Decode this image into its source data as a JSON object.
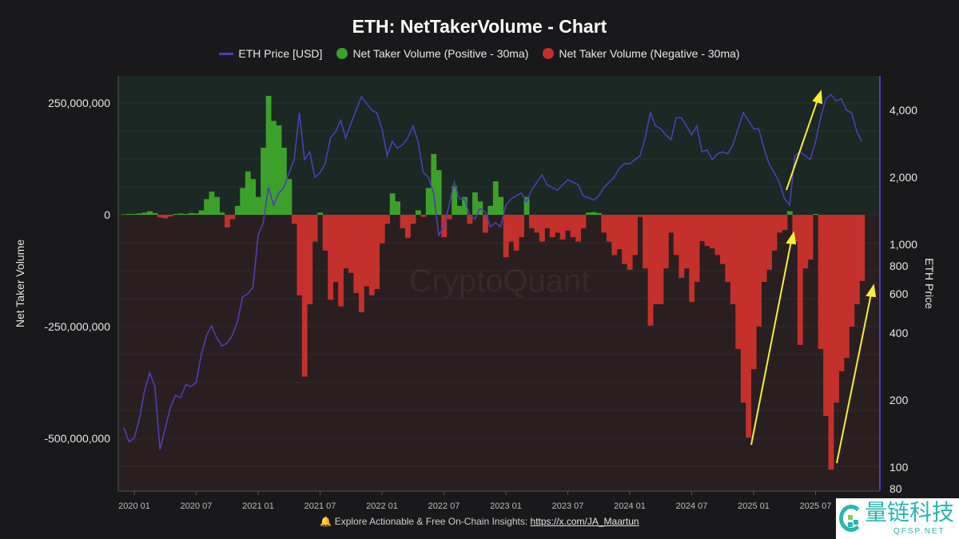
{
  "chart_data": {
    "type": "bar+line",
    "title": "ETH: NetTakerVolume - Chart",
    "legend": [
      {
        "label": "ETH Price [USD]",
        "color": "#4b3fb8",
        "marker": "line"
      },
      {
        "label": "Net Taker Volume (Positive - 30ma)",
        "color": "#3ca12a",
        "marker": "dot"
      },
      {
        "label": "Net Taker Volume (Negative - 30ma)",
        "color": "#c4302b",
        "marker": "dot"
      }
    ],
    "legend_position": "top-center",
    "ylabel_left": "Net Taker Volume",
    "ylabel_right": "ETH Price",
    "left_axis": {
      "min": -600000000,
      "max": 310000000,
      "ticks": [
        250000000,
        0,
        -250000000,
        -500000000
      ],
      "tick_labels": [
        "250,000,000",
        "0",
        "-250,000,000",
        "-500,000,000"
      ]
    },
    "right_axis": {
      "scale": "log",
      "min": 75,
      "max": 5900,
      "ticks": [
        4000,
        2000,
        1000,
        800,
        600,
        400,
        200,
        100,
        80
      ],
      "tick_labels": [
        "4,000",
        "2,000",
        "1,000",
        "800",
        "600",
        "400",
        "200",
        "100",
        "80"
      ]
    },
    "x_tick_labels": [
      "2020 01",
      "2020 07",
      "2021 01",
      "2021 07",
      "2022 01",
      "2022 07",
      "2023 01",
      "2023 07",
      "2024 01",
      "2024 07",
      "2025 01",
      "2025 07"
    ],
    "x_ticks": [
      "2020-01-01",
      "2020-07-01",
      "2021-01-01",
      "2021-07-01",
      "2022-01-01",
      "2022-07-01",
      "2023-01-01",
      "2023-07-01",
      "2024-01-01",
      "2024-07-01",
      "2025-01-01",
      "2025-07-01"
    ],
    "grid": true,
    "months": [
      "2019-12",
      "2020-01",
      "2020-02",
      "2020-03",
      "2020-04",
      "2020-05",
      "2020-06",
      "2020-07",
      "2020-08",
      "2020-09",
      "2020-10",
      "2020-11",
      "2020-12",
      "2021-01",
      "2021-02",
      "2021-03",
      "2021-04",
      "2021-05",
      "2021-06",
      "2021-07",
      "2021-08",
      "2021-09",
      "2021-10",
      "2021-11",
      "2021-12",
      "2022-01",
      "2022-02",
      "2022-03",
      "2022-04",
      "2022-05",
      "2022-06",
      "2022-07",
      "2022-08",
      "2022-09",
      "2022-10",
      "2022-11",
      "2022-12",
      "2023-01",
      "2023-02",
      "2023-03",
      "2023-04",
      "2023-05",
      "2023-06",
      "2023-07",
      "2023-08",
      "2023-09",
      "2023-10",
      "2023-11",
      "2023-12",
      "2024-01",
      "2024-02",
      "2024-03",
      "2024-04",
      "2024-05",
      "2024-06",
      "2024-07",
      "2024-08",
      "2024-09",
      "2024-10",
      "2024-11",
      "2024-12",
      "2025-01",
      "2025-02",
      "2025-03",
      "2025-04",
      "2025-05",
      "2025-06",
      "2025-07",
      "2025-08",
      "2025-09",
      "2025-10",
      "2025-11"
    ],
    "sampling": "two points per month (1st, 16th)",
    "net_taker_volume_millions": [
      1,
      2,
      2,
      3,
      5,
      8,
      4,
      -6,
      -8,
      -4,
      2,
      3,
      2,
      4,
      3,
      10,
      35,
      52,
      40,
      5,
      -28,
      -10,
      20,
      60,
      97,
      80,
      40,
      150,
      266,
      210,
      200,
      150,
      80,
      -20,
      -180,
      -362,
      -200,
      -60,
      5,
      -80,
      -190,
      -150,
      -205,
      -120,
      -130,
      -175,
      -218,
      -160,
      -180,
      -166,
      -64,
      -20,
      48,
      30,
      -30,
      -52,
      -20,
      10,
      -5,
      60,
      136,
      100,
      -50,
      -10,
      64,
      20,
      40,
      -20,
      50,
      30,
      -40,
      20,
      75,
      40,
      -95,
      -60,
      -80,
      -50,
      40,
      -30,
      -40,
      -60,
      -30,
      -50,
      -40,
      -55,
      -35,
      -50,
      -60,
      -30,
      5,
      6,
      4,
      -40,
      -60,
      -90,
      -77,
      -110,
      -123,
      -90,
      -5,
      -120,
      -248,
      -200,
      -200,
      -120,
      -40,
      -90,
      -141,
      -120,
      -195,
      -150,
      -59,
      -70,
      -75,
      -90,
      -110,
      -150,
      -200,
      -300,
      -420,
      -498,
      -345,
      -250,
      -150,
      -123,
      -80,
      -40,
      -34,
      8,
      -60,
      -291,
      -120,
      -100,
      2,
      -300,
      -450,
      -570,
      -420,
      -350,
      -320,
      -250,
      -200,
      -148
    ],
    "eth_price_usd": [
      150,
      130,
      135,
      165,
      220,
      265,
      230,
      120,
      150,
      185,
      210,
      205,
      235,
      230,
      240,
      320,
      390,
      430,
      380,
      350,
      360,
      390,
      450,
      580,
      600,
      640,
      1100,
      1250,
      1800,
      1500,
      1700,
      1800,
      2100,
      2400,
      3900,
      2400,
      2600,
      2000,
      2100,
      2300,
      3000,
      3200,
      3600,
      3000,
      3500,
      4000,
      4600,
      4300,
      4000,
      3900,
      3300,
      2500,
      2900,
      2700,
      2800,
      3000,
      3400,
      2900,
      2100,
      2000,
      1700,
      1100,
      1200,
      1500,
      1900,
      1600,
      1600,
      1350,
      1300,
      1450,
      1400,
      1200,
      1250,
      1200,
      1500,
      1600,
      1650,
      1700,
      1550,
      1750,
      1900,
      2050,
      1850,
      1800,
      1750,
      1850,
      1950,
      1900,
      1850,
      1650,
      1620,
      1580,
      1650,
      1800,
      1900,
      2000,
      2200,
      2300,
      2300,
      2400,
      2500,
      3000,
      3900,
      3400,
      3300,
      3100,
      2950,
      3700,
      3700,
      3400,
      3100,
      3400,
      2600,
      2650,
      2400,
      2550,
      2600,
      2550,
      2800,
      3300,
      3900,
      3600,
      3300,
      3300,
      2700,
      2300,
      2100,
      1900,
      1600,
      1500,
      2500,
      2600,
      2500,
      2400,
      2900,
      3700,
      4500,
      4700,
      4400,
      4500,
      4000,
      3900,
      3200,
      2900
    ],
    "colors": {
      "price": "#4b3fb8",
      "positive": "#3ca12a",
      "negative": "#c4302b",
      "annotation_arrows": "#f5f035",
      "bg_positive": "#1b2823",
      "bg_negative": "#2a1f20"
    },
    "watermark": "CryptoQuant"
  },
  "footer": {
    "text": "Explore Actionable & Free On-Chain Insights:",
    "link": "https://x.com/JA_Maartun",
    "icon": "bell-icon"
  },
  "logo": {
    "cn": "量链科技",
    "en": "QFSP.NET"
  }
}
